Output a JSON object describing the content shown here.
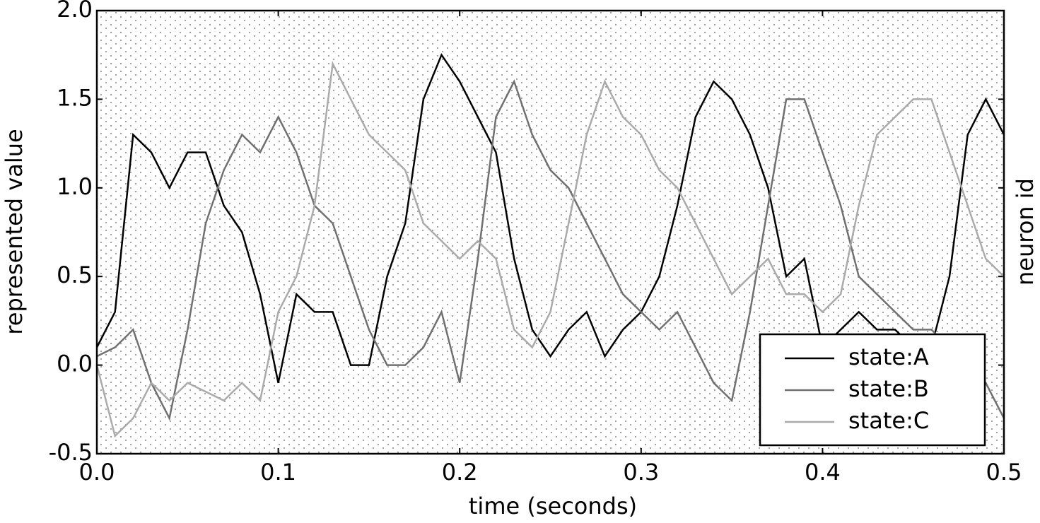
{
  "chart_data": {
    "type": "line",
    "xlabel": "time (seconds)",
    "ylabel": "represented value",
    "y2label": "neuron id",
    "x": [
      0,
      0.01,
      0.02,
      0.03,
      0.04,
      0.05,
      0.06,
      0.07,
      0.08,
      0.09,
      0.1,
      0.11,
      0.12,
      0.13,
      0.14,
      0.15,
      0.16,
      0.17,
      0.18,
      0.19,
      0.2,
      0.21,
      0.22,
      0.23,
      0.24,
      0.25,
      0.26,
      0.27,
      0.28,
      0.29,
      0.3,
      0.31,
      0.32,
      0.33,
      0.34,
      0.35,
      0.36,
      0.37,
      0.38,
      0.39,
      0.4,
      0.41,
      0.42,
      0.43,
      0.44,
      0.45,
      0.46,
      0.47,
      0.48,
      0.49,
      0.5
    ],
    "series": [
      {
        "name": "state:A",
        "color": "#000000",
        "values": [
          0.1,
          0.3,
          1.3,
          1.2,
          1.0,
          1.2,
          1.2,
          0.9,
          0.75,
          0.4,
          -0.1,
          0.4,
          0.3,
          0.3,
          0.0,
          0.0,
          0.5,
          0.8,
          1.5,
          1.75,
          1.6,
          1.4,
          1.2,
          0.6,
          0.2,
          0.05,
          0.2,
          0.3,
          0.05,
          0.2,
          0.3,
          0.5,
          0.9,
          1.4,
          1.6,
          1.5,
          1.3,
          1.0,
          0.5,
          0.6,
          0.1,
          0.2,
          0.3,
          0.2,
          0.2,
          0.1,
          0.1,
          0.5,
          1.3,
          1.5,
          1.3
        ]
      },
      {
        "name": "state:B",
        "color": "#707070",
        "values": [
          0.05,
          0.1,
          0.2,
          -0.1,
          -0.3,
          0.2,
          0.8,
          1.1,
          1.3,
          1.2,
          1.4,
          1.2,
          0.9,
          0.8,
          0.5,
          0.2,
          0.0,
          0.0,
          0.1,
          0.3,
          -0.1,
          0.6,
          1.4,
          1.6,
          1.3,
          1.1,
          1.0,
          0.8,
          0.6,
          0.4,
          0.3,
          0.2,
          0.3,
          0.1,
          -0.1,
          -0.2,
          0.3,
          0.9,
          1.5,
          1.5,
          1.2,
          0.9,
          0.5,
          0.4,
          0.3,
          0.2,
          0.2,
          0.1,
          0.0,
          -0.1,
          -0.3
        ]
      },
      {
        "name": "state:C",
        "color": "#aaaaaa",
        "values": [
          0.0,
          -0.4,
          -0.3,
          -0.1,
          -0.2,
          -0.1,
          -0.15,
          -0.2,
          -0.1,
          -0.2,
          0.3,
          0.5,
          0.9,
          1.7,
          1.5,
          1.3,
          1.2,
          1.1,
          0.8,
          0.7,
          0.6,
          0.7,
          0.6,
          0.2,
          0.1,
          0.3,
          0.8,
          1.3,
          1.6,
          1.4,
          1.3,
          1.1,
          1.0,
          0.8,
          0.6,
          0.4,
          0.5,
          0.6,
          0.4,
          0.4,
          0.3,
          0.4,
          0.9,
          1.3,
          1.4,
          1.5,
          1.5,
          1.2,
          0.9,
          0.6,
          0.5
        ]
      }
    ],
    "xlim": [
      0,
      0.5
    ],
    "xticks": [
      {
        "value": 0,
        "label": "0.0"
      },
      0.1,
      0.2,
      0.3,
      0.4,
      0.5
    ],
    "ylim": [
      -0.5,
      2
    ],
    "yticks": [
      -0.5,
      {
        "value": 0,
        "label": "0.0"
      },
      0.5,
      {
        "value": 1,
        "label": "1.0"
      },
      1.5,
      {
        "value": 2,
        "label": "2.0"
      }
    ],
    "legend": "lower right"
  }
}
